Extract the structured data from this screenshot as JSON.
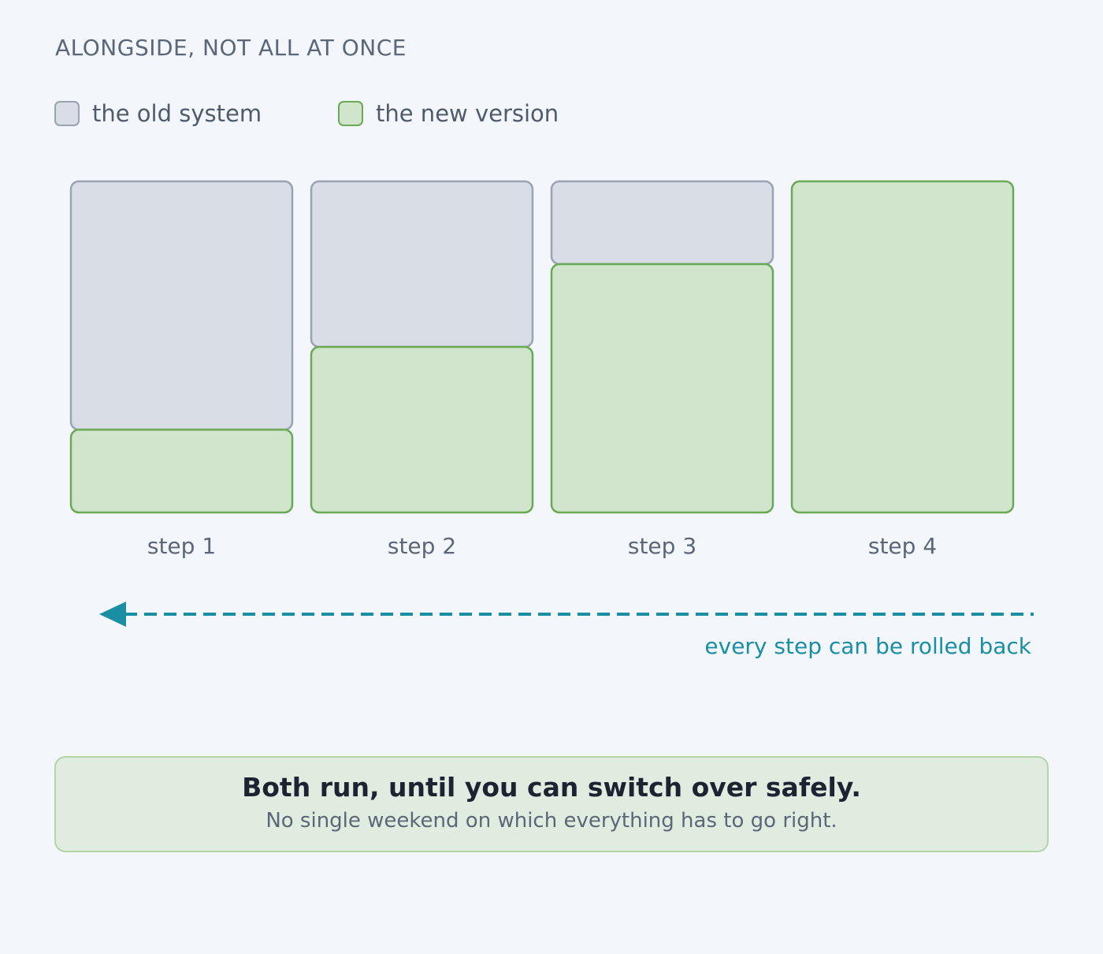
{
  "heading": "ALONGSIDE, NOT ALL AT ONCE",
  "legend": {
    "old_label": "the old system",
    "new_label": "the new version"
  },
  "colors": {
    "old_fill": "#d8dde6",
    "old_stroke": "#9aa3b2",
    "new_fill": "#d1e5cc",
    "new_stroke": "#6aaa55",
    "accent": "#1a8fa3",
    "background": "#f3f6fa"
  },
  "steps": [
    {
      "label": "step 1",
      "new_share": 0.25
    },
    {
      "label": "step 2",
      "new_share": 0.5
    },
    {
      "label": "step 3",
      "new_share": 0.75
    },
    {
      "label": "step 4",
      "new_share": 1.0
    }
  ],
  "rollback": {
    "label": "every step can be rolled back"
  },
  "callout": {
    "title": "Both run, until you can switch over safely.",
    "subtitle": "No single weekend on which everything has to go right."
  }
}
